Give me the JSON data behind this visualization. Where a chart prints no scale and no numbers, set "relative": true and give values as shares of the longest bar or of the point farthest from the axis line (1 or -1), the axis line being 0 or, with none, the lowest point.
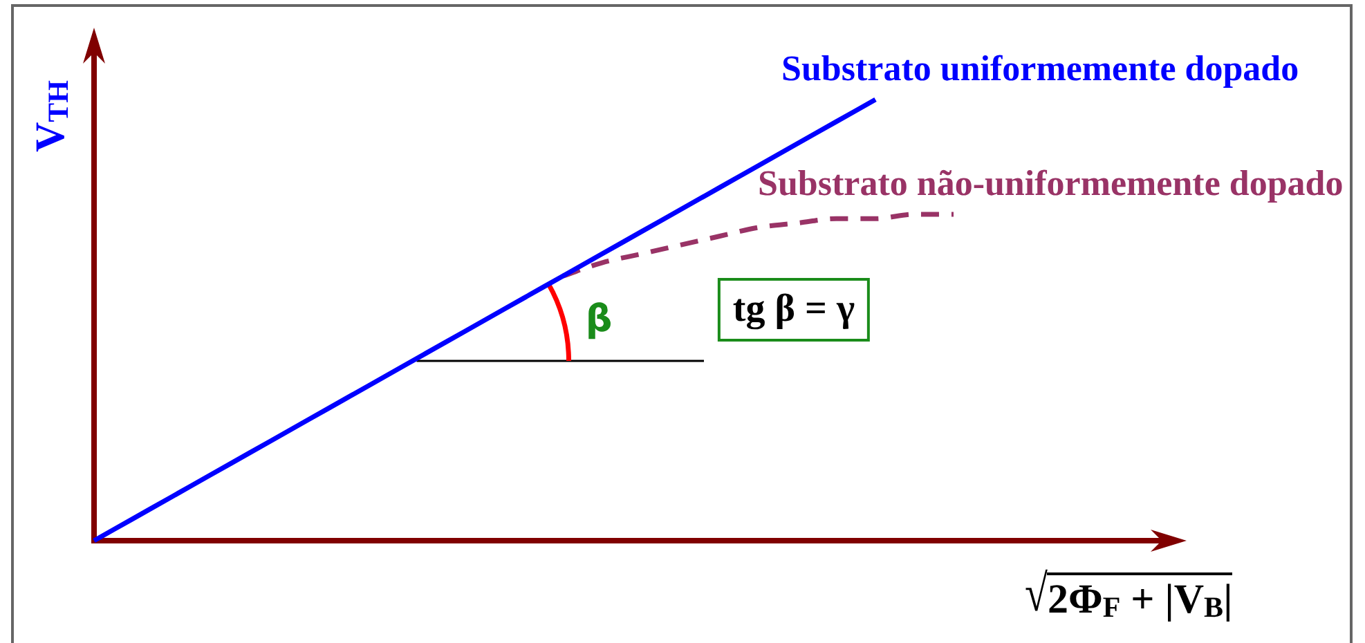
{
  "chart_data": {
    "type": "line",
    "relative": true,
    "categories": [
      null,
      null,
      null,
      null,
      null,
      null,
      null,
      null,
      null,
      null,
      null,
      null,
      null,
      null,
      null,
      null,
      null,
      null,
      null,
      null,
      null,
      null,
      null,
      null,
      null,
      null,
      null,
      null,
      null
    ],
    "series": [
      {
        "name": "Substrato uniformemente dopado",
        "color": "#0000ff",
        "values": [
          0,
          0.05,
          0.1,
          0.15,
          0.2,
          0.25,
          0.3,
          0.35,
          0.4,
          0.45,
          0.5,
          0.55,
          0.6,
          0.65,
          0.7,
          0.75,
          0.8,
          0.85,
          0.9,
          0.95,
          1,
          null,
          null,
          null,
          null,
          null,
          null,
          null,
          null
        ]
      },
      {
        "name": "Substrato não-uniformemente dopado",
        "color": "#993366",
        "line_style": "dashed",
        "values": [
          null,
          null,
          null,
          null,
          null,
          null,
          null,
          null,
          null,
          null,
          null,
          null,
          0.6,
          0.63,
          0.65,
          0.67,
          0.69,
          0.71,
          0.72,
          0.73,
          0.73,
          0.74,
          0.74,
          null,
          null,
          null,
          null,
          null,
          null
        ]
      }
    ],
    "xlabel": "√2Φ$_{F}$ + |V$_{B}$|",
    "ylabel": "V$_{TH}$",
    "annotations": [
      "β",
      "tg β = γ"
    ]
  }
}
